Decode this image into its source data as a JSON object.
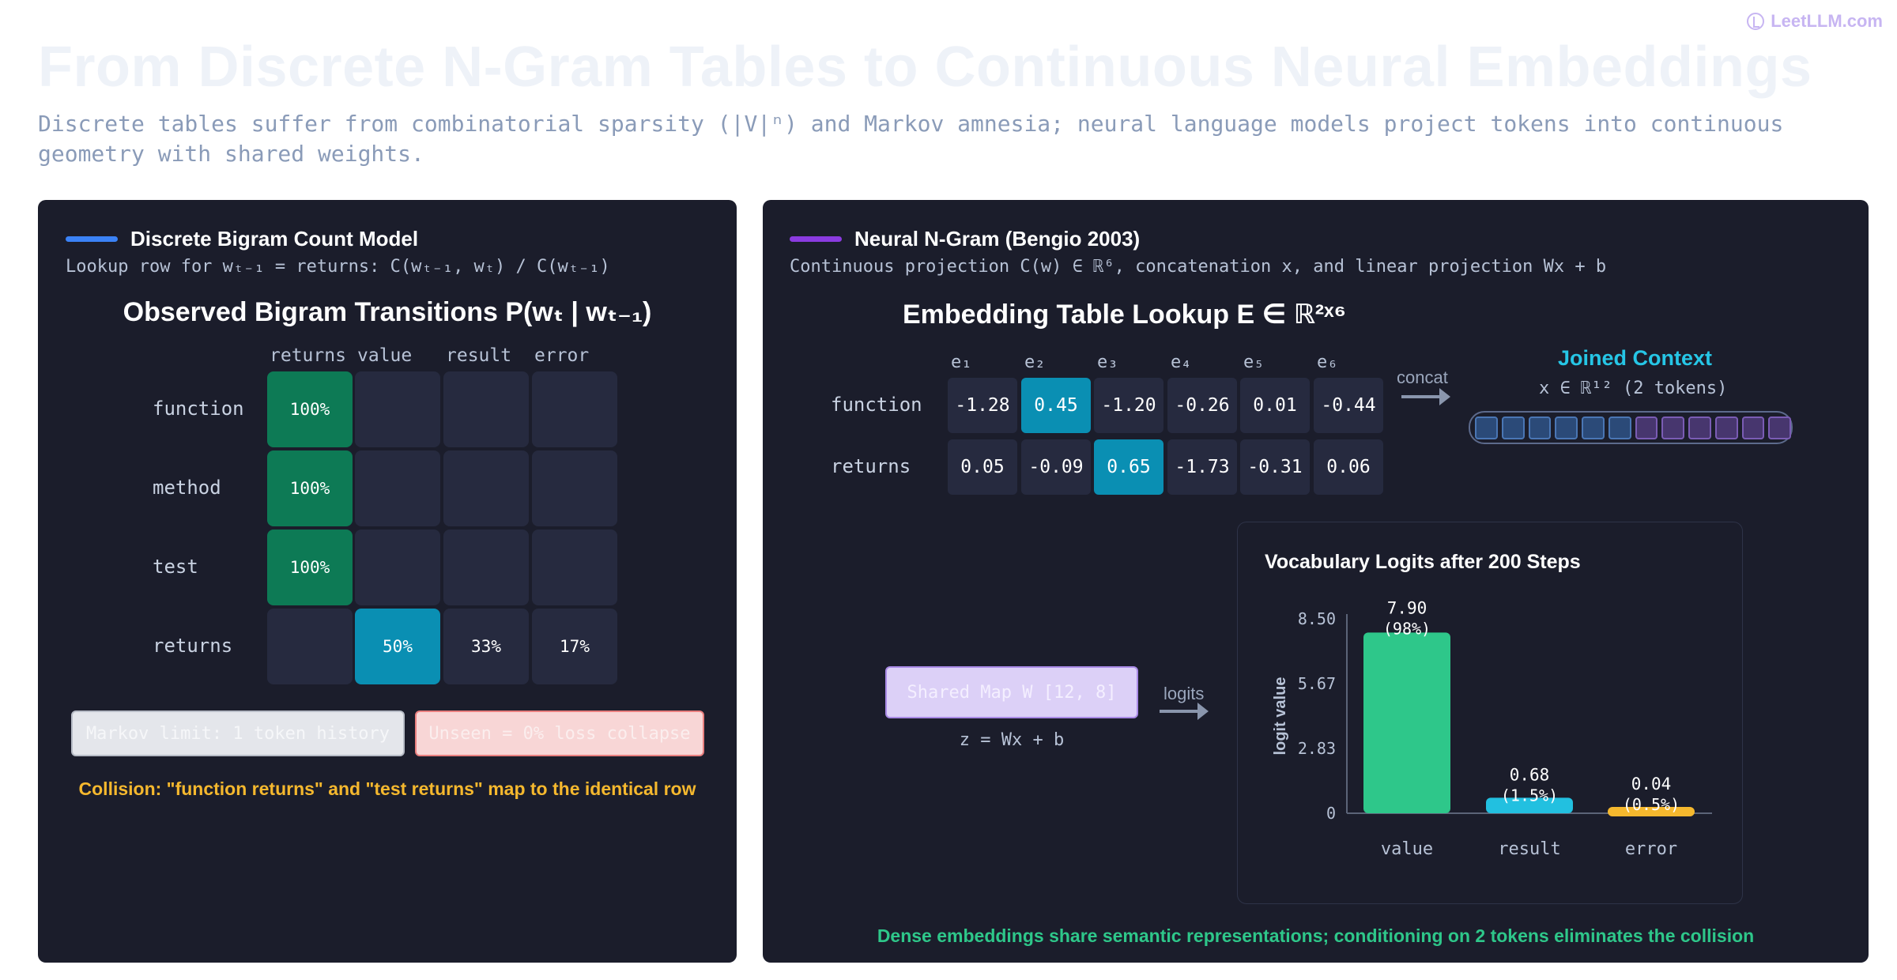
{
  "brand": {
    "name": "LeetLLM.com",
    "icon": "leetllm-logo-icon"
  },
  "title": "From Discrete N-Gram Tables to Continuous Neural Embeddings",
  "subtitle": "Discrete tables suffer from combinatorial sparsity (|V|ⁿ) and Markov amnesia; neural language models project tokens into continuous geometry with shared weights.",
  "colors": {
    "green_cell": "#0d7a55",
    "blue_cell": "#0a8fb3",
    "bar_value": "#2ec78a",
    "bar_result": "#22c0e0",
    "bar_error": "#f5b82e",
    "accent_left": "#3b82f6",
    "accent_right": "#8b3be0"
  },
  "left_panel": {
    "title": "Discrete Bigram Count Model",
    "subtitle": "Lookup row for wₜ₋₁ = returns: C(wₜ₋₁, wₜ) / C(wₜ₋₁)",
    "heatmap_title": "Observed Bigram Transitions P(wₜ | wₜ₋₁)",
    "columns": [
      "returns",
      "value",
      "result",
      "error"
    ],
    "rows": [
      {
        "label": "function",
        "cells": [
          "100%",
          "",
          "",
          ""
        ]
      },
      {
        "label": "method",
        "cells": [
          "100%",
          "",
          "",
          ""
        ]
      },
      {
        "label": "test",
        "cells": [
          "100%",
          "",
          "",
          ""
        ]
      },
      {
        "label": "returns",
        "cells": [
          "",
          "50%",
          "33%",
          "17%"
        ]
      }
    ],
    "badges": [
      "Markov limit: 1 token history",
      "Unseen = 0% loss collapse"
    ],
    "collision": "Collision: \"function returns\" and \"test returns\" map to the identical row"
  },
  "right_panel": {
    "title": "Neural N-Gram (Bengio 2003)",
    "subtitle": "Continuous projection C(w) ∈ ℝ⁶,  concatenation x, and linear projection Wx + b",
    "emb_title": "Embedding Table Lookup E ∈ ℝ²ˣ⁶",
    "emb_columns": [
      "e₁",
      "e₂",
      "e₃",
      "e₄",
      "e₅",
      "e₆"
    ],
    "emb_rows": [
      {
        "label": "function",
        "values": [
          "-1.28",
          "0.45",
          "-1.20",
          "-0.26",
          "0.01",
          "-0.44"
        ],
        "highlight": 1
      },
      {
        "label": "returns",
        "values": [
          "0.05",
          "-0.09",
          "0.65",
          "-1.73",
          "-0.31",
          "0.06"
        ],
        "highlight": 2
      }
    ],
    "concat_label": "concat",
    "context_title": "Joined Context",
    "context_sub": "x ∈ ℝ¹²  (2 tokens)",
    "shared_map": "Shared Map W [12, 8]",
    "formula": "z = Wx + b",
    "logits_label": "logits",
    "footer": "Dense embeddings share semantic representations; conditioning on 2 tokens eliminates the collision"
  },
  "chart_data": {
    "type": "bar",
    "title": "Vocabulary Logits after 200 Steps",
    "ylabel": "logit value",
    "xlabel": "",
    "categories": [
      "value",
      "result",
      "error"
    ],
    "values": [
      7.9,
      0.68,
      0.04
    ],
    "value_labels": [
      "7.90",
      "0.68",
      "0.04"
    ],
    "percent_labels": [
      "(98%)",
      "(1.5%)",
      "(0.5%)"
    ],
    "yticks": [
      "0",
      "2.83",
      "5.67",
      "8.50"
    ],
    "ylim": [
      0,
      8.5
    ],
    "grid": false
  }
}
